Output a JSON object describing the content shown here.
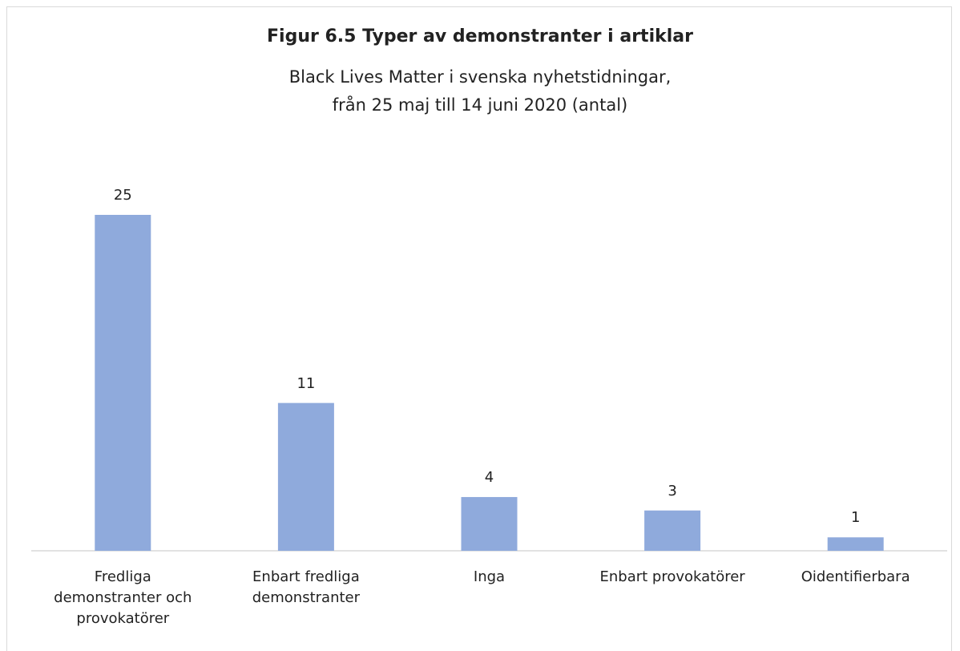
{
  "chart_data": {
    "type": "bar",
    "title": "Figur 6.5 Typer av demonstranter i artiklar",
    "subtitle": [
      "Black Lives Matter i svenska nyhetstidningar,",
      "från 25 maj till 14 juni 2020 (antal)"
    ],
    "categories": [
      "Fredliga demonstranter och provokatörer",
      "Enbart fredliga demonstranter",
      "Inga",
      "Enbart provokatörer",
      "Oidentifierbara"
    ],
    "values": [
      25,
      11,
      4,
      3,
      1
    ],
    "color": "#8faadc"
  }
}
